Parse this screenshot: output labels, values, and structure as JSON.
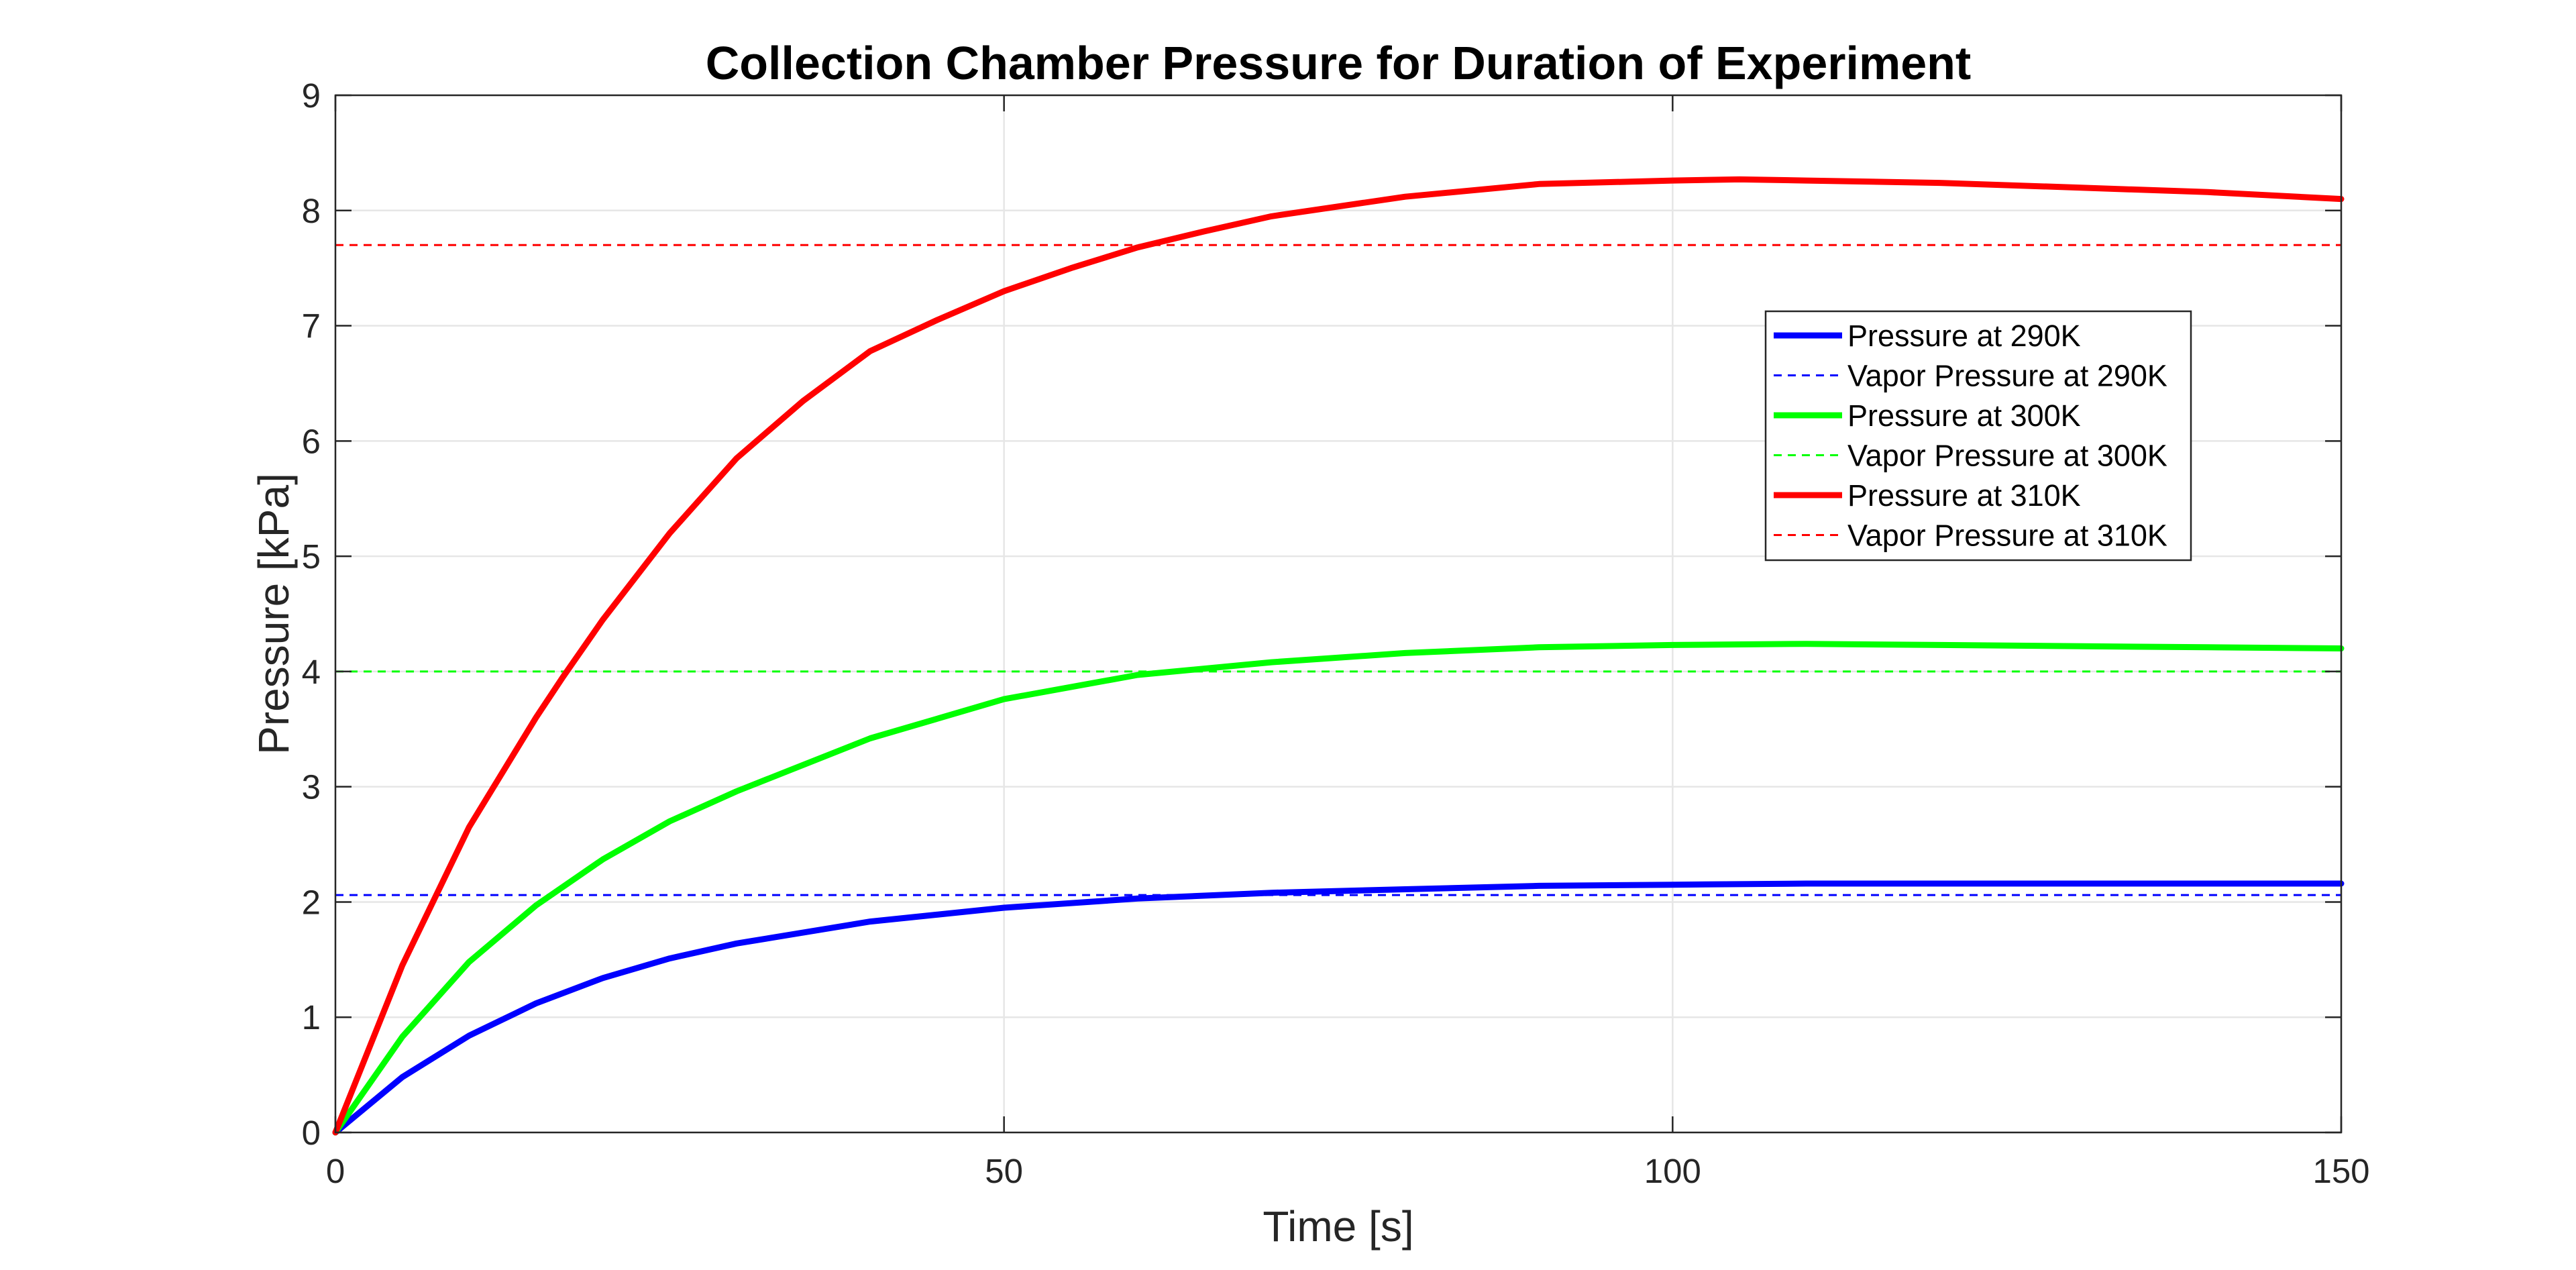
{
  "chart_data": {
    "type": "line",
    "title": "Collection Chamber Pressure for Duration of Experiment",
    "xlabel": "Time [s]",
    "ylabel": "Pressure [kPa]",
    "xlim": [
      0,
      150
    ],
    "ylim": [
      0,
      9
    ],
    "xticks": [
      "0",
      "50",
      "100",
      "150"
    ],
    "yticks": [
      "0",
      "1",
      "2",
      "3",
      "4",
      "5",
      "6",
      "7",
      "8",
      "9"
    ],
    "grid": true,
    "legend_position": "upper-right-inside",
    "series": [
      {
        "name": "Pressure at 290K",
        "color": "#0000ff",
        "style": "solid",
        "x": [
          0,
          5,
          10,
          15,
          20,
          25,
          30,
          40,
          50,
          60,
          70,
          80,
          90,
          100,
          110,
          120,
          130,
          140,
          150
        ],
        "y": [
          0,
          0.48,
          0.84,
          1.12,
          1.34,
          1.51,
          1.64,
          1.83,
          1.95,
          2.03,
          2.08,
          2.11,
          2.14,
          2.15,
          2.16,
          2.16,
          2.16,
          2.16,
          2.16
        ]
      },
      {
        "name": "Vapor Pressure at 290K",
        "color": "#0000ff",
        "style": "dashed",
        "x": [
          0,
          150
        ],
        "y": [
          2.06,
          2.06
        ]
      },
      {
        "name": "Pressure at 300K",
        "color": "#00ff00",
        "style": "solid",
        "x": [
          0,
          5,
          10,
          15,
          20,
          25,
          30,
          40,
          50,
          60,
          70,
          80,
          90,
          100,
          110,
          120,
          130,
          140,
          150
        ],
        "y": [
          0,
          0.83,
          1.48,
          1.97,
          2.37,
          2.7,
          2.96,
          3.42,
          3.76,
          3.97,
          4.08,
          4.16,
          4.21,
          4.23,
          4.24,
          4.23,
          4.22,
          4.21,
          4.2
        ]
      },
      {
        "name": "Vapor Pressure at 300K",
        "color": "#00ff00",
        "style": "dashed",
        "x": [
          0,
          150
        ],
        "y": [
          4.0,
          4.0
        ]
      },
      {
        "name": "Pressure at 310K",
        "color": "#ff0000",
        "style": "solid",
        "x": [
          0,
          5,
          10,
          15,
          17,
          20,
          25,
          30,
          35,
          40,
          45,
          50,
          55,
          60,
          65,
          70,
          80,
          90,
          100,
          105,
          110,
          120,
          130,
          140,
          150
        ],
        "y": [
          0,
          1.45,
          2.65,
          3.6,
          3.95,
          4.45,
          5.2,
          5.85,
          6.35,
          6.78,
          7.05,
          7.3,
          7.5,
          7.68,
          7.82,
          7.95,
          8.12,
          8.23,
          8.26,
          8.27,
          8.26,
          8.24,
          8.2,
          8.16,
          8.1
        ]
      },
      {
        "name": "Vapor Pressure at 310K",
        "color": "#ff0000",
        "style": "dashed",
        "x": [
          0,
          150
        ],
        "y": [
          7.7,
          7.7
        ]
      }
    ]
  }
}
